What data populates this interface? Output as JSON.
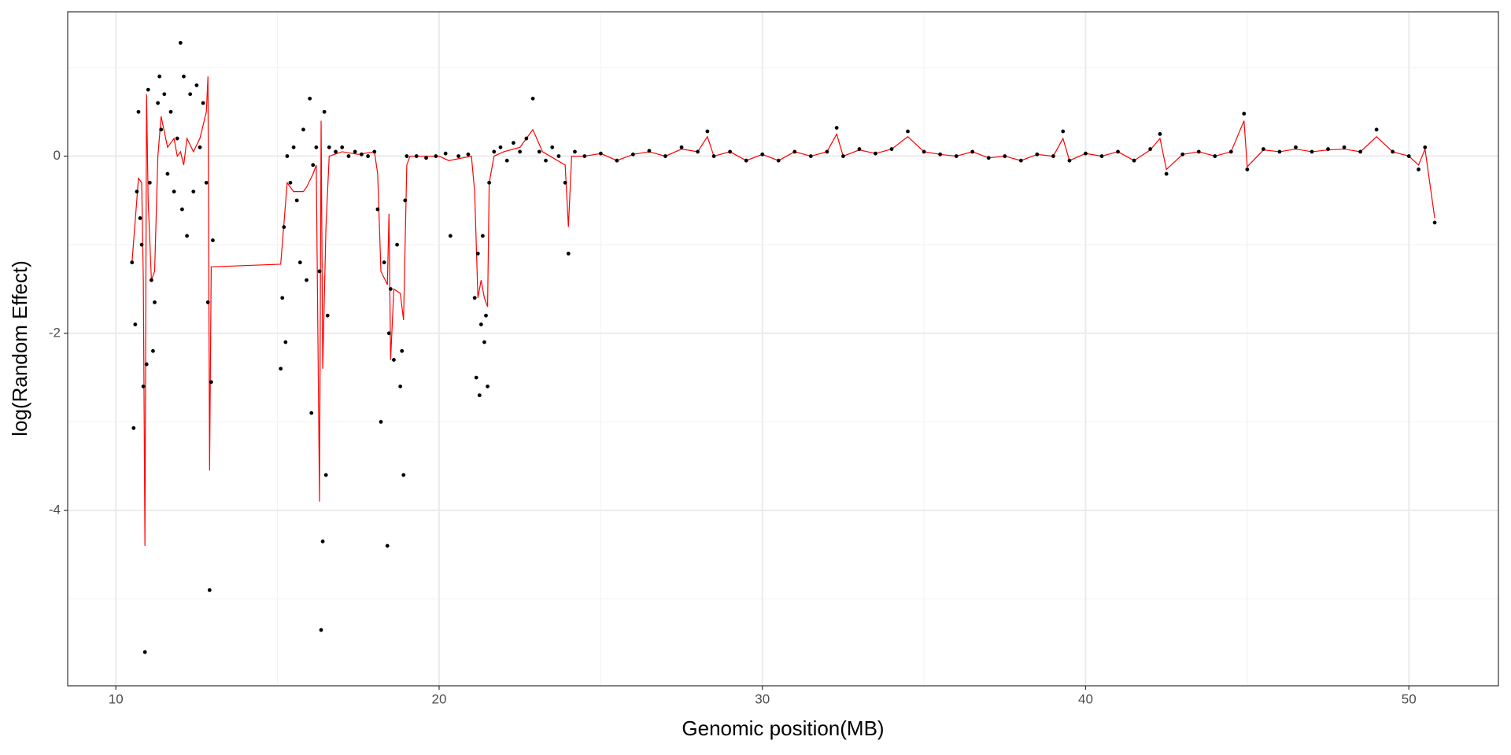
{
  "chart_data": {
    "type": "scatter",
    "x_label": "Genomic position(MB)",
    "y_label": "log(Random Effect)",
    "xlim": [
      8.51,
      52.77
    ],
    "ylim": [
      -5.98,
      1.63
    ],
    "xticks": [
      10,
      20,
      30,
      40,
      50
    ],
    "yticks": [
      -4,
      -2,
      0
    ],
    "x_minor_ticks": [
      15,
      25,
      35,
      45
    ],
    "y_minor_ticks": [
      -5,
      -3,
      -1,
      1
    ],
    "grid": true,
    "series": [
      {
        "type": "scatter",
        "color": "#000000",
        "x": [
          10.5,
          10.55,
          10.6,
          10.65,
          10.7,
          10.75,
          10.8,
          10.85,
          10.9,
          10.95,
          11.0,
          11.05,
          11.1,
          11.15,
          11.2,
          11.3,
          11.35,
          11.4,
          11.5,
          11.6,
          11.7,
          11.8,
          11.9,
          12.0,
          12.05,
          12.1,
          12.2,
          12.3,
          12.4,
          12.5,
          12.6,
          12.7,
          12.8,
          12.85,
          12.9,
          12.95,
          13.0,
          15.1,
          15.15,
          15.2,
          15.25,
          15.3,
          15.4,
          15.5,
          15.6,
          15.7,
          15.8,
          15.9,
          16.0,
          16.05,
          16.1,
          16.2,
          16.3,
          16.35,
          16.4,
          16.45,
          16.5,
          16.55,
          16.6,
          16.8,
          17.0,
          17.2,
          17.4,
          17.6,
          17.8,
          18.0,
          18.1,
          18.2,
          18.3,
          18.4,
          18.45,
          18.5,
          18.6,
          18.7,
          18.8,
          18.85,
          18.9,
          18.95,
          19.0,
          19.3,
          19.6,
          19.9,
          20.2,
          20.35,
          20.6,
          20.9,
          21.1,
          21.15,
          21.2,
          21.25,
          21.3,
          21.35,
          21.4,
          21.45,
          21.5,
          21.55,
          21.7,
          21.9,
          22.1,
          22.3,
          22.5,
          22.7,
          22.9,
          23.1,
          23.3,
          23.5,
          23.7,
          23.9,
          24.0,
          24.2,
          24.5,
          25.0,
          25.5,
          26.0,
          26.5,
          27.0,
          27.5,
          28.0,
          28.3,
          28.5,
          29.0,
          29.5,
          30.0,
          30.5,
          31.0,
          31.5,
          32.0,
          32.3,
          32.5,
          33.0,
          33.5,
          34.0,
          34.5,
          35.0,
          35.5,
          36.0,
          36.5,
          37.0,
          37.5,
          38.0,
          38.5,
          39.0,
          39.3,
          39.5,
          40.0,
          40.5,
          41.0,
          41.5,
          42.0,
          42.3,
          42.5,
          43.0,
          43.5,
          44.0,
          44.5,
          44.9,
          45.0,
          45.5,
          46.0,
          46.5,
          47.0,
          47.5,
          48.0,
          48.5,
          49.0,
          49.5,
          50.0,
          50.3,
          50.5,
          50.8
        ],
        "values": [
          -1.2,
          -3.07,
          -1.9,
          -0.4,
          0.5,
          -0.7,
          -1.0,
          -2.6,
          -5.6,
          -2.35,
          0.75,
          -0.3,
          -1.4,
          -2.2,
          -1.65,
          0.6,
          0.9,
          0.3,
          0.7,
          -0.2,
          0.5,
          -0.4,
          0.2,
          1.28,
          -0.6,
          0.9,
          -0.9,
          0.7,
          -0.4,
          0.8,
          0.1,
          0.6,
          -0.3,
          -1.65,
          -4.9,
          -2.55,
          -0.95,
          -2.4,
          -1.6,
          -0.8,
          -2.1,
          0.0,
          -0.3,
          0.1,
          -0.5,
          -1.2,
          0.3,
          -1.4,
          0.65,
          -2.9,
          -0.1,
          0.1,
          -1.3,
          -5.35,
          -4.35,
          0.5,
          -3.6,
          -1.8,
          0.1,
          0.05,
          0.1,
          0.0,
          0.05,
          0.02,
          0.0,
          0.05,
          -0.6,
          -3.0,
          -1.2,
          -4.4,
          -2.0,
          -1.5,
          -2.3,
          -1.0,
          -2.6,
          -2.2,
          -3.6,
          -0.5,
          0.0,
          0.0,
          -0.02,
          0.0,
          0.03,
          -0.9,
          0.0,
          0.02,
          -1.6,
          -2.5,
          -1.1,
          -2.7,
          -1.9,
          -0.9,
          -2.1,
          -1.8,
          -2.6,
          -0.3,
          0.05,
          0.1,
          -0.05,
          0.15,
          0.05,
          0.2,
          0.65,
          0.05,
          -0.05,
          0.1,
          0.0,
          -0.3,
          -1.1,
          0.05,
          0.0,
          0.03,
          -0.05,
          0.02,
          0.06,
          0.0,
          0.1,
          0.05,
          0.28,
          0.0,
          0.05,
          -0.05,
          0.02,
          -0.05,
          0.05,
          0.0,
          0.05,
          0.32,
          0.0,
          0.08,
          0.03,
          0.08,
          0.28,
          0.05,
          0.02,
          0.0,
          0.05,
          -0.02,
          0.0,
          -0.05,
          0.02,
          0.0,
          0.28,
          -0.05,
          0.03,
          0.0,
          0.05,
          -0.05,
          0.08,
          0.25,
          -0.2,
          0.02,
          0.05,
          0.0,
          0.05,
          0.48,
          -0.15,
          0.08,
          0.05,
          0.1,
          0.05,
          0.08,
          0.1,
          0.05,
          0.3,
          0.05,
          0.0,
          -0.15,
          0.1,
          -0.75
        ]
      },
      {
        "type": "line",
        "color": "#ff0000",
        "x": [
          10.5,
          10.7,
          10.8,
          10.85,
          10.9,
          10.95,
          11.0,
          11.1,
          11.2,
          11.3,
          11.4,
          11.6,
          11.8,
          11.9,
          12.0,
          12.1,
          12.2,
          12.4,
          12.6,
          12.8,
          12.85,
          12.9,
          12.95,
          15.1,
          15.3,
          15.5,
          15.8,
          15.9,
          16.1,
          16.2,
          16.3,
          16.35,
          16.4,
          16.5,
          16.6,
          17.0,
          17.5,
          18.0,
          18.1,
          18.2,
          18.4,
          18.45,
          18.5,
          18.6,
          18.8,
          18.9,
          19.0,
          19.1,
          20.0,
          20.3,
          21.0,
          21.1,
          21.2,
          21.3,
          21.4,
          21.5,
          21.55,
          21.7,
          22.0,
          22.5,
          22.9,
          23.2,
          23.9,
          24.0,
          24.1,
          24.5,
          25.0,
          25.5,
          26.0,
          26.5,
          27.0,
          27.5,
          28.0,
          28.3,
          28.5,
          29.0,
          29.5,
          30.0,
          30.5,
          31.0,
          31.5,
          32.0,
          32.3,
          32.5,
          33.0,
          33.5,
          34.0,
          34.5,
          35.0,
          35.5,
          36.0,
          36.5,
          37.0,
          37.5,
          38.0,
          38.5,
          39.0,
          39.3,
          39.5,
          40.0,
          40.5,
          41.0,
          41.5,
          42.0,
          42.3,
          42.5,
          43.0,
          43.5,
          44.0,
          44.5,
          44.9,
          45.0,
          45.5,
          46.0,
          46.5,
          47.0,
          47.5,
          48.0,
          48.5,
          49.0,
          49.5,
          50.0,
          50.3,
          50.5,
          50.8
        ],
        "values": [
          -1.2,
          -0.25,
          -0.3,
          -1.4,
          -4.4,
          0.7,
          -0.5,
          -1.4,
          -1.3,
          0.0,
          0.45,
          0.1,
          0.2,
          0.0,
          0.05,
          -0.1,
          0.2,
          0.05,
          0.2,
          0.5,
          0.9,
          -3.55,
          -1.25,
          -1.22,
          -0.3,
          -0.4,
          -0.4,
          -0.35,
          -0.2,
          -0.1,
          -3.9,
          0.4,
          -2.4,
          -0.8,
          0.0,
          0.05,
          0.02,
          0.05,
          -0.2,
          -1.3,
          -1.45,
          -0.65,
          -2.3,
          -1.5,
          -1.55,
          -1.85,
          -0.1,
          0.0,
          0.0,
          -0.05,
          0.0,
          -0.4,
          -1.6,
          -1.4,
          -1.6,
          -1.7,
          -0.3,
          0.0,
          0.05,
          0.1,
          0.3,
          0.05,
          -0.1,
          -0.8,
          0.0,
          0.0,
          0.03,
          -0.05,
          0.02,
          0.05,
          0.0,
          0.08,
          0.05,
          0.22,
          0.0,
          0.05,
          -0.05,
          0.02,
          -0.05,
          0.05,
          0.0,
          0.05,
          0.25,
          0.0,
          0.07,
          0.03,
          0.08,
          0.22,
          0.05,
          0.02,
          0.0,
          0.05,
          -0.02,
          0.0,
          -0.05,
          0.02,
          0.0,
          0.2,
          -0.05,
          0.03,
          0.0,
          0.05,
          -0.05,
          0.07,
          0.2,
          -0.15,
          0.02,
          0.05,
          0.0,
          0.05,
          0.4,
          -0.12,
          0.07,
          0.05,
          0.08,
          0.05,
          0.07,
          0.08,
          0.05,
          0.22,
          0.05,
          0.0,
          -0.1,
          0.08,
          -0.7
        ]
      }
    ]
  }
}
